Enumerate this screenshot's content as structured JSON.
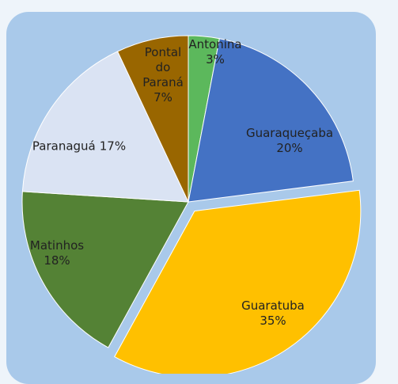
{
  "chart_data": {
    "type": "pie",
    "categories": [
      "Antonina",
      "Guaraqueçaba",
      "Guaratuba",
      "Matinhos",
      "Paranaguá",
      "Pontal do Paraná"
    ],
    "values": [
      3,
      20,
      35,
      18,
      17,
      7
    ],
    "value_labels": [
      "3%",
      "20%",
      "35%",
      "18%",
      "17%",
      "7%"
    ],
    "colors": [
      "#5cb85c",
      "#4472c4",
      "#ffc000",
      "#548235",
      "#dae3f3",
      "#996600"
    ]
  }
}
